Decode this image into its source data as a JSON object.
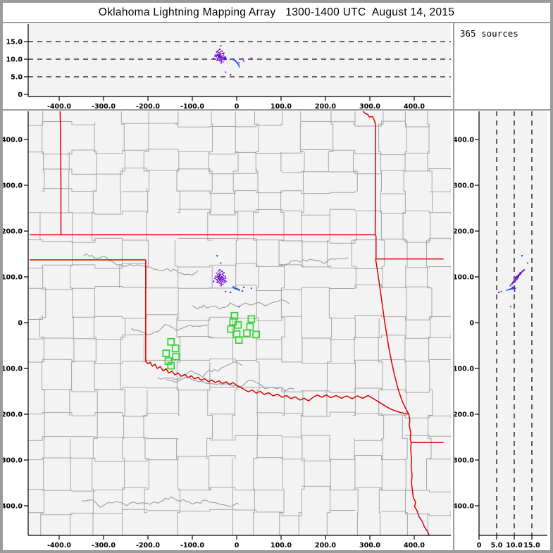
{
  "title": "Oklahoma Lightning Mapping Array   1300-1400 UTC  August 14, 2015",
  "sources_panel": {
    "label": "365 sources"
  },
  "colors": {
    "frame": "#9c9c9c",
    "panel_bg": "#ffffff",
    "plot_bg": "#f3f3f3",
    "county_line": "#a6a6a6",
    "river_line": "#9b9b9b",
    "state_border": "#dd0000",
    "source_purple": "#6a0dd6",
    "source_purple_alt": "#8e32e3",
    "source_blue": "#1f4fe8",
    "station_green": "#2fd32f",
    "axis": "#000000",
    "dash_line": "#111111"
  },
  "chart_data": {
    "type": "scatter",
    "title": "Oklahoma Lightning Mapping Array",
    "time_range": "1300-1400 UTC",
    "date": "August 14, 2015",
    "source_count": 365,
    "legend": "three-projection lightning source plot: top = east-west vs altitude, main = plan view with state/county map, right = altitude vs north-south",
    "x_axis_km": {
      "range": [
        -465,
        465
      ],
      "tick_values": [
        -400,
        -300,
        -200,
        -100,
        0,
        100,
        200,
        300,
        400
      ],
      "tick_labels": [
        "-400.0",
        "-300.0",
        "-200.0",
        "-100.0",
        "0",
        "100.0",
        "200.0",
        "300.0",
        "400.0"
      ]
    },
    "y_axis_km": {
      "range": [
        -465,
        465
      ],
      "tick_values": [
        400,
        300,
        200,
        100,
        0,
        -100,
        -200,
        -300,
        -400
      ],
      "tick_labels": [
        "400.0",
        "300.0",
        "200.0",
        "100.0",
        "0",
        "-100.0",
        "-200.0",
        "-300.0",
        "-400.0"
      ]
    },
    "alt_axis_km": {
      "range": [
        0,
        20
      ],
      "tick_values": [
        0,
        5,
        10,
        15
      ],
      "tick_labels": [
        "0",
        "5.0",
        "10.0",
        "15.0"
      ],
      "dashed_gridlines": [
        5,
        10,
        15
      ]
    },
    "sources_xyz": [
      [
        -37,
        95,
        10.6
      ],
      [
        -35,
        98,
        10.9
      ],
      [
        -39,
        101,
        11.2
      ],
      [
        -33,
        93,
        10.2
      ],
      [
        -41,
        97,
        10.8
      ],
      [
        -36,
        104,
        11.5
      ],
      [
        -31,
        99,
        10.4
      ],
      [
        -44,
        99,
        11.0
      ],
      [
        -38,
        92,
        10.1
      ],
      [
        -34,
        89,
        9.8
      ],
      [
        -40,
        107,
        11.8
      ],
      [
        -29,
        96,
        10.5
      ],
      [
        -43,
        104,
        11.3
      ],
      [
        -37,
        110,
        12.1
      ],
      [
        -32,
        106,
        11.6
      ],
      [
        -46,
        94,
        10.7
      ],
      [
        -35,
        85,
        9.4
      ],
      [
        -30,
        103,
        11.1
      ],
      [
        -42,
        90,
        10.0
      ],
      [
        -38,
        99,
        10.9
      ],
      [
        -27,
        92,
        10.3
      ],
      [
        -45,
        108,
        11.9
      ],
      [
        -33,
        112,
        12.3
      ],
      [
        -39,
        87,
        9.6
      ],
      [
        -36,
        95,
        10.5
      ],
      [
        -41,
        113,
        12.5
      ],
      [
        -28,
        88,
        9.9
      ],
      [
        -47,
        101,
        11.2
      ],
      [
        -34,
        100,
        10.8
      ],
      [
        -31,
        84,
        9.2
      ],
      [
        -40,
        95,
        10.6
      ],
      [
        -25,
        97,
        10.4
      ],
      [
        -37,
        105,
        11.4
      ],
      [
        -43,
        93,
        10.3
      ],
      [
        -29,
        109,
        11.7
      ],
      [
        -36,
        90,
        9.9
      ],
      [
        -49,
        97,
        10.9
      ],
      [
        -33,
        96,
        10.6
      ],
      [
        -39,
        103,
        11.2
      ],
      [
        -26,
        101,
        10.7
      ],
      [
        -44,
        88,
        9.7
      ],
      [
        -31,
        91,
        10.1
      ],
      [
        -38,
        115,
        12.8
      ],
      [
        -35,
        81,
        8.9
      ],
      [
        -42,
        100,
        11.0
      ],
      [
        -30,
        94,
        10.4
      ],
      [
        -52,
        90,
        10.2
      ],
      [
        -24,
        90,
        10.0
      ],
      [
        -44,
        146,
        12.2
      ],
      [
        -36,
        130,
        13.8
      ],
      [
        13,
        69,
        10.1
      ],
      [
        33,
        75,
        10.3
      ],
      [
        16,
        77,
        9.5
      ],
      [
        5,
        35,
        9.0
      ],
      [
        -14,
        66,
        5.6
      ],
      [
        -25,
        68,
        6.3
      ]
    ],
    "sources_blue_xyz": [
      [
        -8,
        78,
        10.0
      ],
      [
        -6,
        76,
        9.8
      ],
      [
        -4,
        75,
        9.6
      ],
      [
        -2,
        74,
        9.4
      ],
      [
        0,
        74,
        9.1
      ],
      [
        2,
        73,
        8.8
      ],
      [
        4,
        72,
        8.4
      ],
      [
        6,
        71,
        7.9
      ]
    ],
    "stations_xy": [
      [
        -5,
        15
      ],
      [
        -8,
        2
      ],
      [
        -13,
        -14
      ],
      [
        3,
        -5
      ],
      [
        0,
        -25
      ],
      [
        5,
        -38
      ],
      [
        33,
        8
      ],
      [
        30,
        -9
      ],
      [
        23,
        -23
      ],
      [
        44,
        -26
      ],
      [
        -148,
        -42
      ],
      [
        -138,
        -56
      ],
      [
        -159,
        -67
      ],
      [
        -137,
        -74
      ],
      [
        -154,
        -84
      ],
      [
        -148,
        -94
      ]
    ],
    "state_borders_km": [
      [
        [
          -205,
          -85
        ],
        [
          -199,
          -90
        ],
        [
          -195,
          -86
        ],
        [
          -190,
          -95
        ],
        [
          -184,
          -91
        ],
        [
          -179,
          -100
        ],
        [
          -172,
          -96
        ],
        [
          -166,
          -105
        ],
        [
          -159,
          -101
        ],
        [
          -153,
          -110
        ],
        [
          -146,
          -106
        ],
        [
          -139,
          -114
        ],
        [
          -132,
          -110
        ],
        [
          -125,
          -117
        ],
        [
          -117,
          -113
        ],
        [
          -110,
          -120
        ],
        [
          -102,
          -116
        ],
        [
          -95,
          -123
        ],
        [
          -87,
          -119
        ],
        [
          -80,
          -126
        ],
        [
          -72,
          -122
        ],
        [
          -64,
          -129
        ],
        [
          -56,
          -125
        ],
        [
          -48,
          -131
        ],
        [
          -40,
          -127
        ],
        [
          -32,
          -133
        ],
        [
          -24,
          -129
        ],
        [
          -16,
          -135
        ],
        [
          -8,
          -131
        ],
        [
          0,
          -137
        ],
        [
          8,
          -141
        ],
        [
          17,
          -146
        ],
        [
          26,
          -151
        ],
        [
          35,
          -147
        ],
        [
          44,
          -154
        ],
        [
          53,
          -150
        ],
        [
          62,
          -157
        ],
        [
          72,
          -153
        ],
        [
          82,
          -160
        ],
        [
          92,
          -156
        ],
        [
          102,
          -163
        ],
        [
          112,
          -159
        ],
        [
          122,
          -166
        ],
        [
          132,
          -162
        ],
        [
          142,
          -169
        ],
        [
          152,
          -165
        ],
        [
          162,
          -171
        ],
        [
          172,
          -163
        ],
        [
          182,
          -158
        ],
        [
          192,
          -163
        ],
        [
          202,
          -158
        ],
        [
          212,
          -164
        ],
        [
          224,
          -159
        ],
        [
          236,
          -165
        ],
        [
          248,
          -160
        ],
        [
          260,
          -166
        ],
        [
          272,
          -160
        ],
        [
          284,
          -165
        ],
        [
          296,
          -159
        ],
        [
          308,
          -166
        ],
        [
          318,
          -172
        ],
        [
          328,
          -178
        ],
        [
          338,
          -184
        ],
        [
          348,
          -189
        ],
        [
          358,
          -193
        ],
        [
          368,
          -196
        ],
        [
          378,
          -198
        ],
        [
          388,
          -200
        ]
      ],
      [
        [
          284,
          463
        ],
        [
          289,
          457
        ],
        [
          296,
          454
        ],
        [
          299,
          449
        ],
        [
          306,
          450
        ],
        [
          309,
          444
        ],
        [
          312,
          436
        ],
        [
          313,
          420
        ],
        [
          312,
          192
        ],
        [
          314,
          188
        ],
        [
          314,
          142
        ],
        [
          313,
          139
        ],
        [
          317,
          115
        ],
        [
          321,
          88
        ],
        [
          325,
          60
        ],
        [
          329,
          32
        ],
        [
          333,
          4
        ],
        [
          338,
          -26
        ],
        [
          343,
          -56
        ],
        [
          349,
          -86
        ],
        [
          356,
          -116
        ],
        [
          364,
          -146
        ],
        [
          373,
          -172
        ],
        [
          381,
          -188
        ],
        [
          388,
          -200
        ]
      ],
      [
        [
          388,
          -200
        ],
        [
          390,
          -212
        ],
        [
          389,
          -226
        ],
        [
          392,
          -240
        ],
        [
          391,
          -254
        ],
        [
          393,
          -262
        ],
        [
          392,
          -278
        ],
        [
          394,
          -296
        ],
        [
          393,
          -314
        ],
        [
          395,
          -332
        ],
        [
          394,
          -350
        ],
        [
          396,
          -368
        ],
        [
          398,
          -382
        ],
        [
          403,
          -392
        ],
        [
          401,
          -402
        ],
        [
          407,
          -412
        ],
        [
          411,
          -424
        ],
        [
          418,
          -434
        ],
        [
          423,
          -446
        ],
        [
          430,
          -456
        ],
        [
          434,
          -465
        ]
      ],
      [
        [
          -398,
          463
        ],
        [
          -397,
          420
        ],
        [
          -396,
          300
        ],
        [
          -396,
          192
        ]
      ],
      [
        [
          -466,
          192
        ],
        [
          312,
          192
        ]
      ],
      [
        [
          -466,
          137
        ],
        [
          -205,
          137
        ]
      ],
      [
        [
          -205,
          137
        ],
        [
          -205,
          -85
        ]
      ],
      [
        [
          314,
          139
        ],
        [
          466,
          139
        ]
      ],
      [
        [
          393,
          -262
        ],
        [
          466,
          -262
        ]
      ]
    ]
  }
}
